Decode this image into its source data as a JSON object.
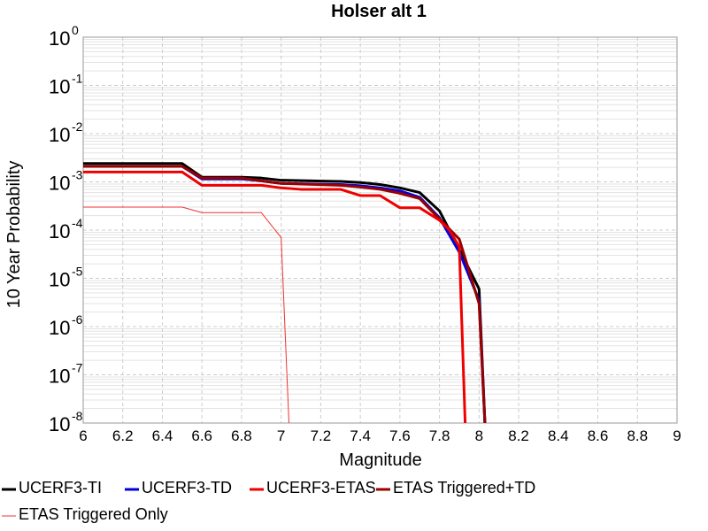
{
  "chart_data": {
    "type": "line",
    "title": "Holser alt 1",
    "xlabel": "Magnitude",
    "ylabel": "10 Year Probability",
    "xlim": [
      6,
      9
    ],
    "ylim": [
      1e-08,
      1
    ],
    "yscale": "log",
    "grid": true,
    "legend_position": "bottom",
    "x_ticks": [
      "6",
      "6.2",
      "6.4",
      "6.6",
      "6.8",
      "7",
      "7.2",
      "7.4",
      "7.6",
      "7.8",
      "8",
      "8.2",
      "8.4",
      "8.6",
      "8.8",
      "9"
    ],
    "y_ticks": [
      {
        "base": "10",
        "exp": "0",
        "value": 1
      },
      {
        "base": "10",
        "exp": "-1",
        "value": 0.1
      },
      {
        "base": "10",
        "exp": "-2",
        "value": 0.01
      },
      {
        "base": "10",
        "exp": "-3",
        "value": 0.001
      },
      {
        "base": "10",
        "exp": "-4",
        "value": 0.0001
      },
      {
        "base": "10",
        "exp": "-5",
        "value": 1e-05
      },
      {
        "base": "10",
        "exp": "-6",
        "value": 1e-06
      },
      {
        "base": "10",
        "exp": "-7",
        "value": 1e-07
      },
      {
        "base": "10",
        "exp": "-8",
        "value": 1e-08
      }
    ],
    "series": [
      {
        "name": "UCERF3-TI",
        "color": "#000000",
        "width": 3,
        "points": [
          [
            6.0,
            0.0024
          ],
          [
            6.5,
            0.0024
          ],
          [
            6.6,
            0.00125
          ],
          [
            6.8,
            0.00125
          ],
          [
            6.9,
            0.0012
          ],
          [
            7.0,
            0.00108
          ],
          [
            7.3,
            0.00102
          ],
          [
            7.4,
            0.00097
          ],
          [
            7.5,
            0.00088
          ],
          [
            7.6,
            0.00075
          ],
          [
            7.7,
            0.0006
          ],
          [
            7.8,
            0.00025
          ],
          [
            7.9,
            4e-05
          ],
          [
            8.0,
            6e-06
          ],
          [
            8.03,
            9e-09
          ]
        ]
      },
      {
        "name": "UCERF3-TD",
        "color": "#0000dd",
        "width": 3,
        "points": [
          [
            6.0,
            0.0021
          ],
          [
            6.5,
            0.0021
          ],
          [
            6.6,
            0.00115
          ],
          [
            6.8,
            0.00115
          ],
          [
            6.9,
            0.00105
          ],
          [
            7.0,
            0.00093
          ],
          [
            7.3,
            0.00088
          ],
          [
            7.4,
            0.00083
          ],
          [
            7.5,
            0.00075
          ],
          [
            7.6,
            0.00065
          ],
          [
            7.7,
            0.00048
          ],
          [
            7.8,
            0.00018
          ],
          [
            7.9,
            3.5e-05
          ],
          [
            8.0,
            3.5e-06
          ],
          [
            8.03,
            9e-09
          ]
        ]
      },
      {
        "name": "UCERF3-ETAS",
        "color": "#ee0000",
        "width": 3,
        "points": [
          [
            6.0,
            0.0016
          ],
          [
            6.5,
            0.0016
          ],
          [
            6.6,
            0.00085
          ],
          [
            6.9,
            0.00085
          ],
          [
            7.0,
            0.00075
          ],
          [
            7.1,
            0.0007
          ],
          [
            7.3,
            0.0007
          ],
          [
            7.4,
            0.00052
          ],
          [
            7.5,
            0.00052
          ],
          [
            7.6,
            0.00029
          ],
          [
            7.7,
            0.00029
          ],
          [
            7.8,
            0.00016
          ],
          [
            7.85,
            0.0001
          ],
          [
            7.9,
            4.5e-05
          ],
          [
            7.93,
            9e-09
          ]
        ]
      },
      {
        "name": "ETAS Triggered+TD",
        "color": "#990000",
        "width": 3,
        "points": [
          [
            6.0,
            0.0021
          ],
          [
            6.5,
            0.0021
          ],
          [
            6.6,
            0.0012
          ],
          [
            6.8,
            0.0012
          ],
          [
            6.9,
            0.00105
          ],
          [
            7.0,
            0.00093
          ],
          [
            7.3,
            0.00085
          ],
          [
            7.4,
            0.00078
          ],
          [
            7.5,
            0.0007
          ],
          [
            7.6,
            0.00058
          ],
          [
            7.7,
            0.00045
          ],
          [
            7.8,
            0.00017
          ],
          [
            7.9,
            6.5e-05
          ],
          [
            8.0,
            3e-06
          ],
          [
            8.03,
            9e-09
          ]
        ]
      },
      {
        "name": "ETAS Triggered Only",
        "color": "#ee3333",
        "width": 1,
        "points": [
          [
            6.0,
            0.0003
          ],
          [
            6.5,
            0.0003
          ],
          [
            6.6,
            0.00023
          ],
          [
            6.9,
            0.00023
          ],
          [
            7.0,
            7e-05
          ],
          [
            7.04,
            9e-09
          ]
        ]
      }
    ]
  }
}
